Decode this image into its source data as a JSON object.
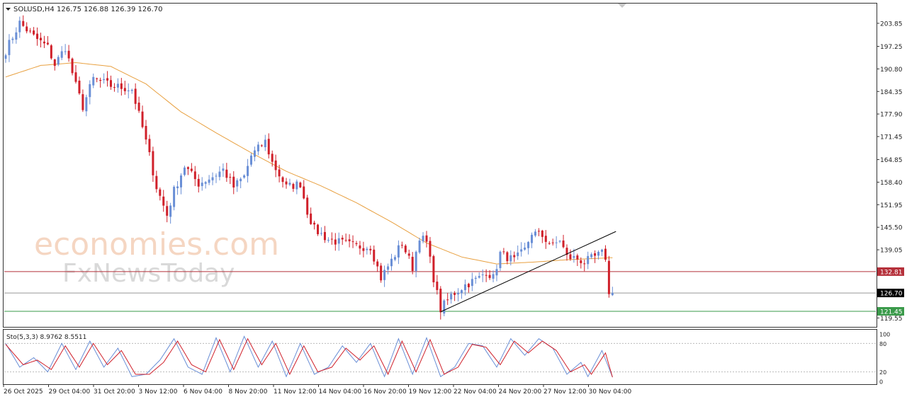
{
  "header": {
    "symbol_timeframe": "SOLUSD,H4",
    "ohlc": "126.75 126.88 126.39 126.70"
  },
  "watermark": {
    "line1": "economies.com",
    "line2": "FxNewsToday"
  },
  "colors": {
    "bull_candle": "#6a8fd6",
    "bear_candle": "#d0202a",
    "moving_average": "#e8a040",
    "resistance_line": "#b5303a",
    "support_line": "#3a9a4a",
    "current_line": "#999999",
    "stoch_main": "#6a8fd6",
    "stoch_signal": "#d0202a"
  },
  "chart_data": [
    {
      "type": "candlestick",
      "title": "SOLUSD,H4",
      "ylim": [
        117.0,
        209.5
      ],
      "y_ticks": [
        "203.85",
        "197.25",
        "190.80",
        "184.35",
        "177.90",
        "171.45",
        "164.85",
        "158.40",
        "151.95",
        "145.50",
        "139.05",
        "119.55"
      ],
      "x_ticks": [
        "26 Oct 2025",
        "29 Oct 04:00",
        "31 Oct 20:00",
        "3 Nov 12:00",
        "6 Nov 04:00",
        "8 Nov 20:00",
        "11 Nov 12:00",
        "14 Nov 04:00",
        "16 Nov 20:00",
        "19 Nov 12:00",
        "22 Nov 04:00",
        "24 Nov 20:00",
        "27 Nov 12:00",
        "30 Nov 04:00"
      ],
      "horizontal_levels": [
        {
          "label": "132.81",
          "value": 132.81,
          "style": "resistance"
        },
        {
          "label": "126.70",
          "value": 126.7,
          "style": "current"
        },
        {
          "label": "121.45",
          "value": 121.45,
          "style": "support"
        }
      ],
      "trendline": {
        "start": {
          "index": 124,
          "value": 121.3
        },
        "end": {
          "index": 174,
          "value": 144.3
        }
      },
      "moving_average_anchors": [
        {
          "index": 0,
          "value": 188.5
        },
        {
          "index": 10,
          "value": 191.8
        },
        {
          "index": 20,
          "value": 192.6
        },
        {
          "index": 30,
          "value": 191.5
        },
        {
          "index": 40,
          "value": 186.5
        },
        {
          "index": 50,
          "value": 178.5
        },
        {
          "index": 60,
          "value": 172.5
        },
        {
          "index": 70,
          "value": 166.8
        },
        {
          "index": 80,
          "value": 161.5
        },
        {
          "index": 90,
          "value": 157.3
        },
        {
          "index": 100,
          "value": 152.5
        },
        {
          "index": 110,
          "value": 147.0
        },
        {
          "index": 120,
          "value": 141.0
        },
        {
          "index": 130,
          "value": 137.0
        },
        {
          "index": 140,
          "value": 135.0
        },
        {
          "index": 150,
          "value": 135.5
        },
        {
          "index": 160,
          "value": 136.2
        },
        {
          "index": 173,
          "value": 136.8
        }
      ],
      "close_anchors": [
        {
          "index": 0,
          "value": 196.0
        },
        {
          "index": 4,
          "value": 204.0
        },
        {
          "index": 8,
          "value": 200.0
        },
        {
          "index": 12,
          "value": 197.0
        },
        {
          "index": 14,
          "value": 192.0
        },
        {
          "index": 17,
          "value": 197.0
        },
        {
          "index": 20,
          "value": 186.0
        },
        {
          "index": 22,
          "value": 180.0
        },
        {
          "index": 25,
          "value": 188.0
        },
        {
          "index": 30,
          "value": 186.0
        },
        {
          "index": 36,
          "value": 185.0
        },
        {
          "index": 39,
          "value": 174.0
        },
        {
          "index": 41,
          "value": 166.0
        },
        {
          "index": 43,
          "value": 157.0
        },
        {
          "index": 46,
          "value": 149.0
        },
        {
          "index": 48,
          "value": 156.0
        },
        {
          "index": 51,
          "value": 163.0
        },
        {
          "index": 55,
          "value": 158.0
        },
        {
          "index": 59,
          "value": 160.0
        },
        {
          "index": 62,
          "value": 162.0
        },
        {
          "index": 65,
          "value": 157.0
        },
        {
          "index": 68,
          "value": 160.0
        },
        {
          "index": 70,
          "value": 166.0
        },
        {
          "index": 74,
          "value": 170.0
        },
        {
          "index": 76,
          "value": 164.0
        },
        {
          "index": 80,
          "value": 157.0
        },
        {
          "index": 84,
          "value": 158.0
        },
        {
          "index": 86,
          "value": 150.0
        },
        {
          "index": 88,
          "value": 145.0
        },
        {
          "index": 92,
          "value": 142.0
        },
        {
          "index": 96,
          "value": 141.0
        },
        {
          "index": 100,
          "value": 140.0
        },
        {
          "index": 104,
          "value": 140.0
        },
        {
          "index": 107,
          "value": 131.0
        },
        {
          "index": 110,
          "value": 136.0
        },
        {
          "index": 113,
          "value": 141.0
        },
        {
          "index": 116,
          "value": 134.0
        },
        {
          "index": 118,
          "value": 143.0
        },
        {
          "index": 120,
          "value": 141.0
        },
        {
          "index": 122,
          "value": 131.0
        },
        {
          "index": 124,
          "value": 122.0
        },
        {
          "index": 127,
          "value": 126.0
        },
        {
          "index": 131,
          "value": 129.0
        },
        {
          "index": 135,
          "value": 131.0
        },
        {
          "index": 137,
          "value": 133.0
        },
        {
          "index": 139,
          "value": 131.0
        },
        {
          "index": 141,
          "value": 138.0
        },
        {
          "index": 145,
          "value": 136.0
        },
        {
          "index": 148,
          "value": 139.0
        },
        {
          "index": 150,
          "value": 144.0
        },
        {
          "index": 153,
          "value": 143.0
        },
        {
          "index": 156,
          "value": 140.0
        },
        {
          "index": 158,
          "value": 142.0
        },
        {
          "index": 160,
          "value": 137.0
        },
        {
          "index": 163,
          "value": 136.5
        },
        {
          "index": 165,
          "value": 135.5
        },
        {
          "index": 168,
          "value": 137.0
        },
        {
          "index": 170,
          "value": 138.0
        },
        {
          "index": 171,
          "value": 137.0
        },
        {
          "index": 172,
          "value": 126.0
        },
        {
          "index": 173,
          "value": 126.7
        }
      ]
    },
    {
      "type": "line",
      "title": "Sto(5,3,3) 8.9762 8.5511",
      "ylim": [
        0,
        100
      ],
      "y_ticks": [
        "100",
        "80",
        "20",
        "0"
      ],
      "levels": [
        80,
        20
      ],
      "series": [
        {
          "name": "main",
          "anchors": [
            {
              "index": 0,
              "value": 80
            },
            {
              "index": 4,
              "value": 30
            },
            {
              "index": 8,
              "value": 50
            },
            {
              "index": 12,
              "value": 20
            },
            {
              "index": 16,
              "value": 80
            },
            {
              "index": 20,
              "value": 25
            },
            {
              "index": 24,
              "value": 85
            },
            {
              "index": 28,
              "value": 30
            },
            {
              "index": 32,
              "value": 70
            },
            {
              "index": 36,
              "value": 10
            },
            {
              "index": 40,
              "value": 15
            },
            {
              "index": 44,
              "value": 45
            },
            {
              "index": 48,
              "value": 90
            },
            {
              "index": 52,
              "value": 30
            },
            {
              "index": 56,
              "value": 15
            },
            {
              "index": 60,
              "value": 92
            },
            {
              "index": 64,
              "value": 20
            },
            {
              "index": 68,
              "value": 95
            },
            {
              "index": 72,
              "value": 30
            },
            {
              "index": 76,
              "value": 85
            },
            {
              "index": 80,
              "value": 10
            },
            {
              "index": 84,
              "value": 80
            },
            {
              "index": 88,
              "value": 15
            },
            {
              "index": 92,
              "value": 30
            },
            {
              "index": 96,
              "value": 75
            },
            {
              "index": 100,
              "value": 40
            },
            {
              "index": 104,
              "value": 80
            },
            {
              "index": 108,
              "value": 10
            },
            {
              "index": 112,
              "value": 90
            },
            {
              "index": 116,
              "value": 15
            },
            {
              "index": 120,
              "value": 92
            },
            {
              "index": 124,
              "value": 10
            },
            {
              "index": 128,
              "value": 30
            },
            {
              "index": 132,
              "value": 80
            },
            {
              "index": 136,
              "value": 75
            },
            {
              "index": 140,
              "value": 30
            },
            {
              "index": 144,
              "value": 90
            },
            {
              "index": 148,
              "value": 55
            },
            {
              "index": 152,
              "value": 90
            },
            {
              "index": 156,
              "value": 70
            },
            {
              "index": 160,
              "value": 15
            },
            {
              "index": 164,
              "value": 40
            },
            {
              "index": 166,
              "value": 10
            },
            {
              "index": 170,
              "value": 65
            },
            {
              "index": 173,
              "value": 9
            }
          ]
        },
        {
          "name": "signal",
          "anchors": [
            {
              "index": 0,
              "value": 78
            },
            {
              "index": 5,
              "value": 35
            },
            {
              "index": 9,
              "value": 45
            },
            {
              "index": 13,
              "value": 25
            },
            {
              "index": 17,
              "value": 75
            },
            {
              "index": 21,
              "value": 30
            },
            {
              "index": 25,
              "value": 80
            },
            {
              "index": 29,
              "value": 35
            },
            {
              "index": 33,
              "value": 65
            },
            {
              "index": 37,
              "value": 15
            },
            {
              "index": 41,
              "value": 15
            },
            {
              "index": 45,
              "value": 40
            },
            {
              "index": 49,
              "value": 85
            },
            {
              "index": 53,
              "value": 35
            },
            {
              "index": 57,
              "value": 20
            },
            {
              "index": 61,
              "value": 88
            },
            {
              "index": 65,
              "value": 25
            },
            {
              "index": 69,
              "value": 90
            },
            {
              "index": 73,
              "value": 35
            },
            {
              "index": 77,
              "value": 80
            },
            {
              "index": 81,
              "value": 15
            },
            {
              "index": 85,
              "value": 75
            },
            {
              "index": 89,
              "value": 20
            },
            {
              "index": 93,
              "value": 30
            },
            {
              "index": 97,
              "value": 70
            },
            {
              "index": 101,
              "value": 45
            },
            {
              "index": 105,
              "value": 75
            },
            {
              "index": 109,
              "value": 15
            },
            {
              "index": 113,
              "value": 85
            },
            {
              "index": 117,
              "value": 20
            },
            {
              "index": 121,
              "value": 88
            },
            {
              "index": 125,
              "value": 15
            },
            {
              "index": 129,
              "value": 30
            },
            {
              "index": 133,
              "value": 78
            },
            {
              "index": 137,
              "value": 72
            },
            {
              "index": 141,
              "value": 35
            },
            {
              "index": 145,
              "value": 85
            },
            {
              "index": 149,
              "value": 60
            },
            {
              "index": 153,
              "value": 85
            },
            {
              "index": 157,
              "value": 65
            },
            {
              "index": 161,
              "value": 20
            },
            {
              "index": 165,
              "value": 35
            },
            {
              "index": 167,
              "value": 15
            },
            {
              "index": 171,
              "value": 60
            },
            {
              "index": 173,
              "value": 8.6
            }
          ]
        }
      ]
    }
  ]
}
